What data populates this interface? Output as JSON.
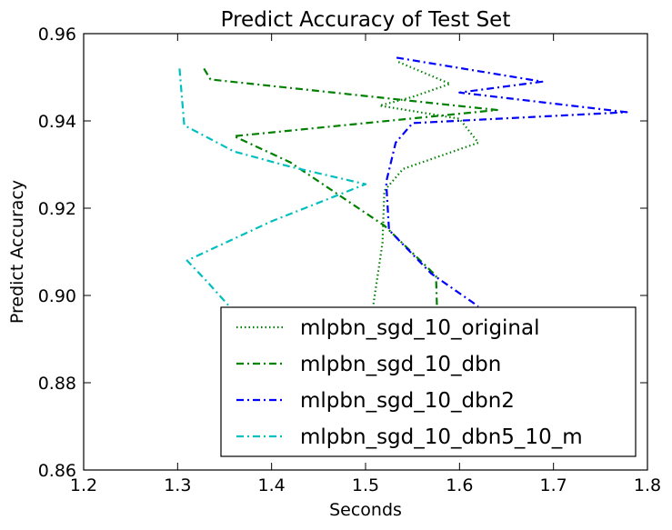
{
  "chart_data": {
    "type": "line",
    "title": "Predict Accuracy of Test Set",
    "xlabel": "Seconds",
    "ylabel": "Predict Accuracy",
    "xlim": [
      1.2,
      1.8
    ],
    "ylim": [
      0.86,
      0.96
    ],
    "xticks": [
      1.2,
      1.3,
      1.4,
      1.5,
      1.6,
      1.7,
      1.8
    ],
    "xtick_labels": [
      "1.2",
      "1.3",
      "1.4",
      "1.5",
      "1.6",
      "1.7",
      "1.8"
    ],
    "yticks": [
      0.86,
      0.88,
      0.9,
      0.92,
      0.94,
      0.96
    ],
    "ytick_labels": [
      "0.86",
      "0.88",
      "0.90",
      "0.92",
      "0.94",
      "0.96"
    ],
    "grid": false,
    "legend_position": "lower-right",
    "series": [
      {
        "name": "mlpbn_sgd_10_original",
        "color": "#008000",
        "dash": "dotted",
        "points": [
          {
            "x": 1.535,
            "y": 0.9535
          },
          {
            "x": 1.59,
            "y": 0.9485
          },
          {
            "x": 1.55,
            "y": 0.9455
          },
          {
            "x": 1.515,
            "y": 0.9435
          },
          {
            "x": 1.6,
            "y": 0.9405
          },
          {
            "x": 1.62,
            "y": 0.935
          },
          {
            "x": 1.54,
            "y": 0.929
          },
          {
            "x": 1.52,
            "y": 0.924
          },
          {
            "x": 1.518,
            "y": 0.912
          },
          {
            "x": 1.508,
            "y": 0.8975
          }
        ]
      },
      {
        "name": "mlpbn_sgd_10_dbn",
        "color": "#008000",
        "dash": "dashdot",
        "points": [
          {
            "x": 1.328,
            "y": 0.952
          },
          {
            "x": 1.335,
            "y": 0.9495
          },
          {
            "x": 1.64,
            "y": 0.9425
          },
          {
            "x": 1.36,
            "y": 0.9365
          },
          {
            "x": 1.42,
            "y": 0.9305
          },
          {
            "x": 1.52,
            "y": 0.916
          },
          {
            "x": 1.575,
            "y": 0.9045
          },
          {
            "x": 1.576,
            "y": 0.8975
          }
        ]
      },
      {
        "name": "mlpbn_sgd_10_dbn2",
        "color": "#0000ff",
        "dash": "dashdot",
        "points": [
          {
            "x": 1.533,
            "y": 0.9545
          },
          {
            "x": 1.688,
            "y": 0.949
          },
          {
            "x": 1.6,
            "y": 0.9465
          },
          {
            "x": 1.778,
            "y": 0.942
          },
          {
            "x": 1.55,
            "y": 0.9395
          },
          {
            "x": 1.532,
            "y": 0.935
          },
          {
            "x": 1.522,
            "y": 0.926
          },
          {
            "x": 1.525,
            "y": 0.915
          },
          {
            "x": 1.57,
            "y": 0.905
          },
          {
            "x": 1.62,
            "y": 0.8975
          }
        ]
      },
      {
        "name": "mlpbn_sgd_10_dbn5_10_m",
        "color": "#00bfbf",
        "dash": "dashdot",
        "points": [
          {
            "x": 1.302,
            "y": 0.952
          },
          {
            "x": 1.307,
            "y": 0.939
          },
          {
            "x": 1.36,
            "y": 0.933
          },
          {
            "x": 1.42,
            "y": 0.9295
          },
          {
            "x": 1.5,
            "y": 0.9255
          },
          {
            "x": 1.4,
            "y": 0.917
          },
          {
            "x": 1.31,
            "y": 0.908
          },
          {
            "x": 1.33,
            "y": 0.9035
          },
          {
            "x": 1.355,
            "y": 0.8975
          }
        ]
      }
    ]
  }
}
